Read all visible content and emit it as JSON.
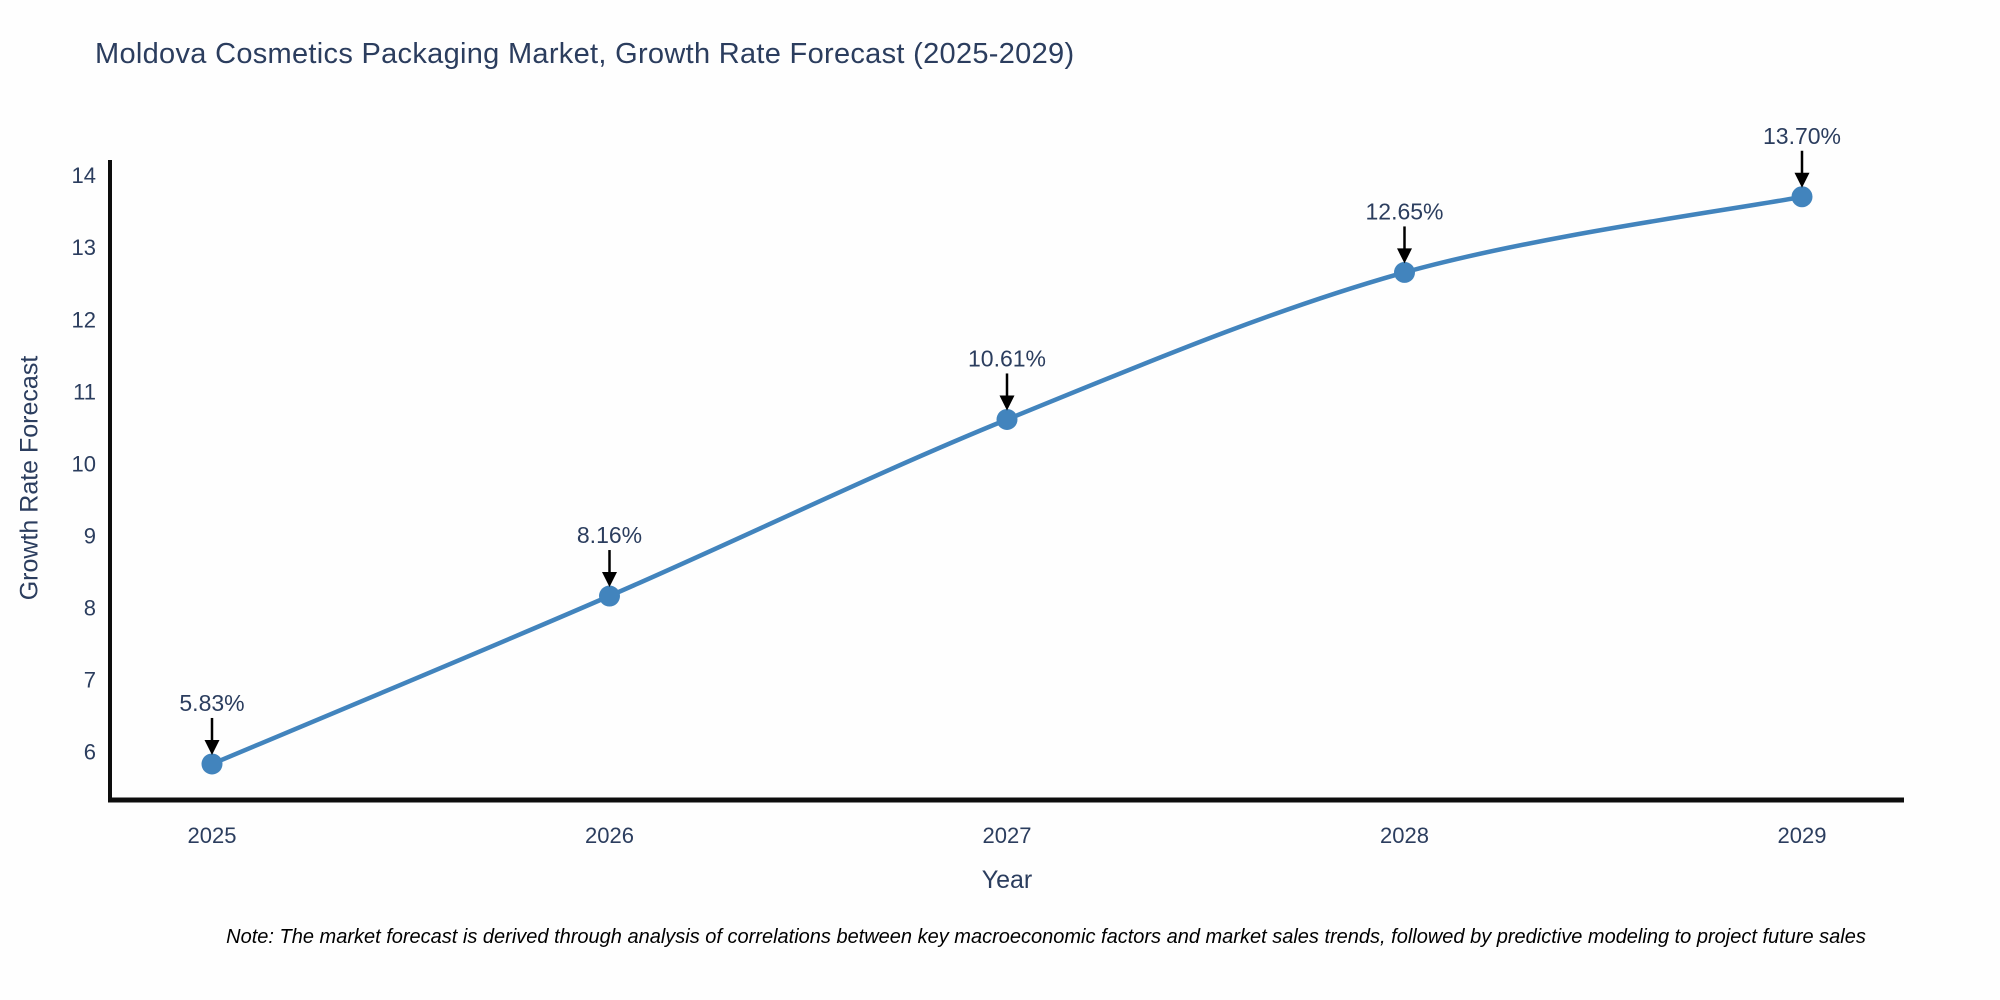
{
  "title": "Moldova Cosmetics Packaging Market, Growth Rate Forecast (2025-2029)",
  "note": "Note: The market forecast is derived through analysis of correlations between key macroeconomic factors and market sales trends, followed by predictive modeling to project future sales",
  "chart_data": {
    "type": "line",
    "title": "Moldova Cosmetics Packaging Market, Growth Rate Forecast (2025-2029)",
    "xlabel": "Year",
    "ylabel": "Growth Rate Forecast",
    "x": [
      "2025",
      "2026",
      "2027",
      "2028",
      "2029"
    ],
    "values": [
      5.83,
      8.16,
      10.61,
      12.65,
      13.7
    ],
    "point_labels": [
      "5.83%",
      "8.16%",
      "10.61%",
      "12.65%",
      "13.70%"
    ],
    "ylim": [
      5.33,
      14.21
    ],
    "yticks": [
      6,
      7,
      8,
      9,
      10,
      11,
      12,
      13,
      14
    ],
    "grid": false,
    "legend": "none",
    "line_color": "#4284bd",
    "marker_color": "#4284bd",
    "axis_color": "#0d0d0d",
    "annotation_arrow_color": "#000000",
    "text_color": "#2b3d5e"
  }
}
